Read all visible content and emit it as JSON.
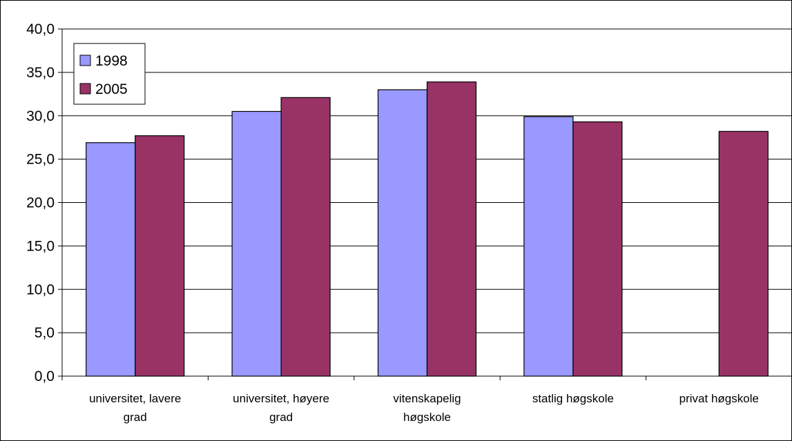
{
  "chart_data": {
    "type": "bar",
    "categories": [
      [
        "universitet, lavere",
        "grad"
      ],
      [
        "universitet, høyere",
        "grad"
      ],
      [
        "vitenskapelig",
        "høgskole"
      ],
      [
        "statlig høgskole"
      ],
      [
        "privat høgskole"
      ]
    ],
    "series": [
      {
        "name": "1998",
        "color": "#9999ff",
        "values": [
          26.9,
          30.5,
          33.0,
          29.9,
          null
        ]
      },
      {
        "name": "2005",
        "color": "#993366",
        "values": [
          27.7,
          32.1,
          33.9,
          29.3,
          28.2
        ]
      }
    ],
    "y_ticks": [
      "0,0",
      "5,0",
      "10,0",
      "15,0",
      "20,0",
      "25,0",
      "30,0",
      "35,0",
      "40,0"
    ],
    "ylim": [
      0,
      40
    ],
    "y_step": 5,
    "grid": true,
    "legend_position": "top-left"
  }
}
